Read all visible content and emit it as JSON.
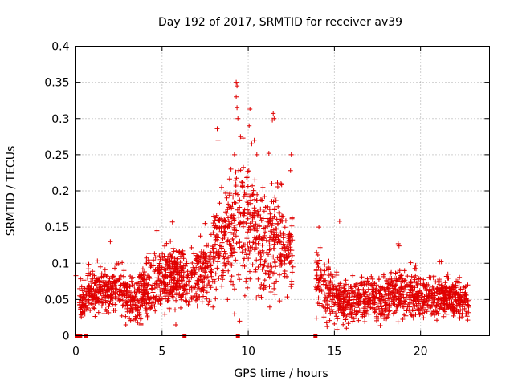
{
  "chart_data": {
    "type": "scatter",
    "title": "Day 192 of 2017, SRMTID for receiver av39",
    "xlabel": "GPS time / hours",
    "ylabel": "SRMTID / TECUs",
    "xlim": [
      0,
      24
    ],
    "ylim": [
      0,
      0.4
    ],
    "x_ticks": [
      0,
      5,
      10,
      15,
      20
    ],
    "x_tick_labels": [
      "0",
      "5",
      "10",
      "15",
      "20"
    ],
    "y_ticks": [
      0,
      0.05,
      0.1,
      0.15,
      0.2,
      0.25,
      0.3,
      0.35,
      0.4
    ],
    "y_tick_labels": [
      "0",
      "0.05",
      "0.1",
      "0.15",
      "0.2",
      "0.25",
      "0.3",
      "0.35",
      "0.4"
    ],
    "grid": true,
    "marker": "plus",
    "color": "#e00000",
    "gap_hours": [
      12.6,
      13.9
    ],
    "outliers": [
      {
        "x": 9.3,
        "y": 0.35
      },
      {
        "x": 9.35,
        "y": 0.345
      },
      {
        "x": 9.3,
        "y": 0.33
      },
      {
        "x": 9.35,
        "y": 0.315
      },
      {
        "x": 9.4,
        "y": 0.3
      },
      {
        "x": 10.1,
        "y": 0.313
      },
      {
        "x": 10.05,
        "y": 0.29
      },
      {
        "x": 11.45,
        "y": 0.307
      },
      {
        "x": 11.5,
        "y": 0.3
      },
      {
        "x": 11.4,
        "y": 0.298
      },
      {
        "x": 8.2,
        "y": 0.286
      },
      {
        "x": 8.25,
        "y": 0.27
      },
      {
        "x": 9.55,
        "y": 0.275
      },
      {
        "x": 9.7,
        "y": 0.273
      },
      {
        "x": 10.2,
        "y": 0.265
      },
      {
        "x": 10.35,
        "y": 0.27
      },
      {
        "x": 12.5,
        "y": 0.25
      },
      {
        "x": 12.45,
        "y": 0.228
      },
      {
        "x": 11.2,
        "y": 0.252
      },
      {
        "x": 9.2,
        "y": 0.25
      },
      {
        "x": 10.5,
        "y": 0.25
      },
      {
        "x": 18.7,
        "y": 0.127
      },
      {
        "x": 18.75,
        "y": 0.124
      },
      {
        "x": 15.3,
        "y": 0.158
      },
      {
        "x": 14.1,
        "y": 0.15
      },
      {
        "x": 5.6,
        "y": 0.157
      },
      {
        "x": 4.7,
        "y": 0.145
      },
      {
        "x": 2.0,
        "y": 0.13
      },
      {
        "x": 21.1,
        "y": 0.102
      },
      {
        "x": 21.2,
        "y": 0.102
      },
      {
        "x": 8.8,
        "y": 0.05
      },
      {
        "x": 9.2,
        "y": 0.03
      },
      {
        "x": 9.5,
        "y": 0.02
      },
      {
        "x": 5.8,
        "y": 0.015
      },
      {
        "x": 2.9,
        "y": 0.015
      },
      {
        "x": 0.0,
        "y": 0.083
      },
      {
        "x": 7.5,
        "y": 0.155
      },
      {
        "x": 11.9,
        "y": 0.21
      },
      {
        "x": 9.0,
        "y": 0.23
      }
    ],
    "baseline_markers": [
      {
        "x": 0.05,
        "y": 0
      },
      {
        "x": 0.15,
        "y": 0
      },
      {
        "x": 0.25,
        "y": 0
      },
      {
        "x": 0.6,
        "y": 0
      },
      {
        "x": 6.3,
        "y": 0
      },
      {
        "x": 9.4,
        "y": 0
      },
      {
        "x": 13.9,
        "y": 0
      }
    ],
    "envelope": [
      {
        "x": 0.2,
        "center": 0.045,
        "spread": 0.025
      },
      {
        "x": 0.7,
        "center": 0.06,
        "spread": 0.03
      },
      {
        "x": 1.5,
        "center": 0.06,
        "spread": 0.03
      },
      {
        "x": 2.5,
        "center": 0.065,
        "spread": 0.03
      },
      {
        "x": 3.5,
        "center": 0.05,
        "spread": 0.03
      },
      {
        "x": 4.5,
        "center": 0.07,
        "spread": 0.04
      },
      {
        "x": 5.5,
        "center": 0.085,
        "spread": 0.04
      },
      {
        "x": 6.5,
        "center": 0.07,
        "spread": 0.03
      },
      {
        "x": 7.5,
        "center": 0.09,
        "spread": 0.04
      },
      {
        "x": 8.5,
        "center": 0.14,
        "spread": 0.06
      },
      {
        "x": 9.5,
        "center": 0.16,
        "spread": 0.08
      },
      {
        "x": 10.5,
        "center": 0.14,
        "spread": 0.07
      },
      {
        "x": 11.5,
        "center": 0.13,
        "spread": 0.07
      },
      {
        "x": 12.5,
        "center": 0.12,
        "spread": 0.05
      },
      {
        "x": 13.9,
        "center": 0.08,
        "spread": 0.04
      },
      {
        "x": 14.5,
        "center": 0.06,
        "spread": 0.04
      },
      {
        "x": 15.5,
        "center": 0.045,
        "spread": 0.025
      },
      {
        "x": 16.5,
        "center": 0.05,
        "spread": 0.025
      },
      {
        "x": 17.5,
        "center": 0.05,
        "spread": 0.03
      },
      {
        "x": 18.5,
        "center": 0.06,
        "spread": 0.03
      },
      {
        "x": 19.5,
        "center": 0.055,
        "spread": 0.03
      },
      {
        "x": 20.5,
        "center": 0.055,
        "spread": 0.025
      },
      {
        "x": 21.5,
        "center": 0.055,
        "spread": 0.025
      },
      {
        "x": 22.8,
        "center": 0.045,
        "spread": 0.025
      }
    ],
    "points_per_hour": 115
  }
}
